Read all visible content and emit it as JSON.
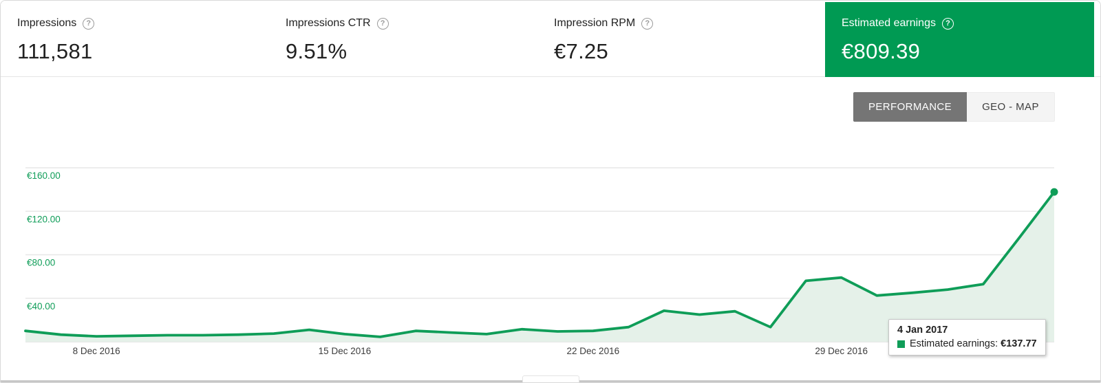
{
  "metrics": [
    {
      "label": "Impressions",
      "value": "111,581"
    },
    {
      "label": "Impressions CTR",
      "value": "9.51%"
    },
    {
      "label": "Impression RPM",
      "value": "€7.25"
    },
    {
      "label": "Estimated earnings",
      "value": "€809.39"
    }
  ],
  "tabs": [
    {
      "label": "PERFORMANCE",
      "active": true
    },
    {
      "label": "GEO - MAP",
      "active": false
    }
  ],
  "tooltip": {
    "date": "4 Jan 2017",
    "series_label": "Estimated earnings:",
    "value": "€137.77"
  },
  "colors": {
    "accent_green": "#009a53",
    "line_green": "#0f9d58",
    "area_fill": "#e5f1e9",
    "grid": "#e7e7e7",
    "axis_bottom": "#dedede",
    "y_label_green": "#0f9d58",
    "x_label_dark": "#3c3c3c",
    "tab_active_bg": "#757575",
    "tab_inactive_bg": "#f4f4f4"
  },
  "chart_data": {
    "type": "area",
    "title": "Estimated earnings per day",
    "x": [
      "6 Dec 2016",
      "7 Dec 2016",
      "8 Dec 2016",
      "9 Dec 2016",
      "10 Dec 2016",
      "11 Dec 2016",
      "12 Dec 2016",
      "13 Dec 2016",
      "14 Dec 2016",
      "15 Dec 2016",
      "16 Dec 2016",
      "17 Dec 2016",
      "18 Dec 2016",
      "19 Dec 2016",
      "20 Dec 2016",
      "21 Dec 2016",
      "22 Dec 2016",
      "23 Dec 2016",
      "24 Dec 2016",
      "25 Dec 2016",
      "26 Dec 2016",
      "27 Dec 2016",
      "28 Dec 2016",
      "29 Dec 2016",
      "30 Dec 2016",
      "31 Dec 2016",
      "1 Jan 2017",
      "2 Jan 2017",
      "3 Jan 2017",
      "4 Jan 2017"
    ],
    "series": [
      {
        "name": "Estimated earnings",
        "values": [
          10,
          6.5,
          5,
          5.5,
          6,
          6,
          6.5,
          7.5,
          11,
          7,
          4.5,
          10,
          8.5,
          7,
          11.5,
          9.5,
          10,
          13.5,
          28.5,
          25,
          28,
          13.5,
          56,
          59,
          42.5,
          45,
          48,
          53,
          95,
          137.77
        ]
      }
    ],
    "y_ticks": [
      {
        "value": 40,
        "label": "€40.00"
      },
      {
        "value": 80,
        "label": "€80.00"
      },
      {
        "value": 120,
        "label": "€120.00"
      },
      {
        "value": 160,
        "label": "€160.00"
      }
    ],
    "x_ticks": [
      {
        "index": 2,
        "label": "8 Dec 2016"
      },
      {
        "index": 9,
        "label": "15 Dec 2016"
      },
      {
        "index": 16,
        "label": "22 Dec 2016"
      },
      {
        "index": 23,
        "label": "29 Dec 2016"
      }
    ],
    "ylim": [
      0,
      170
    ],
    "grid": true,
    "legend": false,
    "highlighted_point": {
      "date": "4 Jan 2017",
      "value": 137.77,
      "index": 29
    }
  }
}
